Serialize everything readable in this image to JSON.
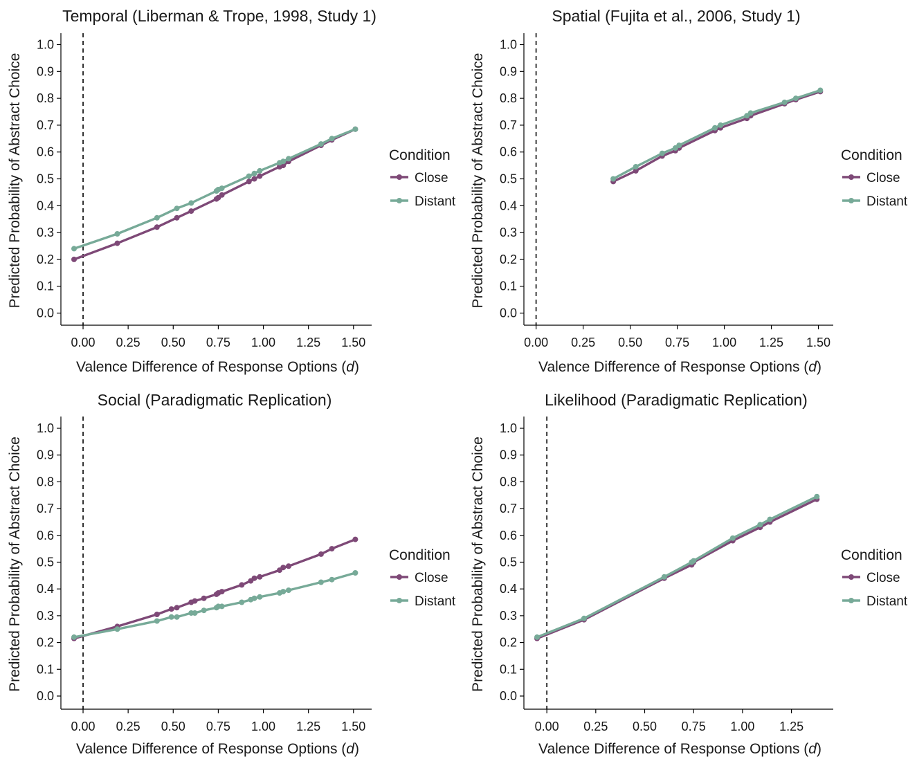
{
  "colors": {
    "close": "#7e4977",
    "distant": "#77aa98"
  },
  "chart_data": [
    {
      "type": "line",
      "title": "Temporal (Liberman & Trope, 1998, Study 1)",
      "xlabel": "Valence Difference of Response Options (",
      "xlabel_italic": "d",
      "xlabel_suffix": ")",
      "ylabel": "Predicted Probability of Abstract Choice",
      "xlim": [
        -0.05,
        1.52
      ],
      "ylim": [
        0.0,
        1.0
      ],
      "x_ticks": [
        "0.00",
        "0.25",
        "0.50",
        "0.75",
        "1.00",
        "1.25",
        "1.50"
      ],
      "y_ticks": [
        "0.0",
        "0.1",
        "0.2",
        "0.3",
        "0.4",
        "0.5",
        "0.6",
        "0.7",
        "0.8",
        "0.9",
        "1.0"
      ],
      "reference_line_x": 0.0,
      "legend": {
        "title": "Condition",
        "position": "right"
      },
      "x": [
        -0.05,
        0.19,
        0.41,
        0.52,
        0.6,
        0.74,
        0.75,
        0.77,
        0.92,
        0.95,
        0.98,
        1.09,
        1.11,
        1.14,
        1.32,
        1.38,
        1.51
      ],
      "series": [
        {
          "name": "Close",
          "values": [
            0.2,
            0.26,
            0.32,
            0.355,
            0.38,
            0.425,
            0.43,
            0.44,
            0.49,
            0.5,
            0.51,
            0.545,
            0.55,
            0.565,
            0.625,
            0.645,
            0.685
          ]
        },
        {
          "name": "Distant",
          "values": [
            0.24,
            0.295,
            0.355,
            0.39,
            0.41,
            0.455,
            0.46,
            0.465,
            0.51,
            0.52,
            0.53,
            0.56,
            0.565,
            0.575,
            0.63,
            0.65,
            0.685
          ]
        }
      ]
    },
    {
      "type": "line",
      "title": "Spatial (Fujita et al., 2006, Study 1)",
      "xlabel": "Valence Difference of Response Options (",
      "xlabel_italic": "d",
      "xlabel_suffix": ")",
      "ylabel": "Predicted Probability of Abstract Choice",
      "xlim": [
        -0.05,
        1.52
      ],
      "ylim": [
        0.0,
        1.0
      ],
      "x_ticks": [
        "0.00",
        "0.25",
        "0.50",
        "0.75",
        "1.00",
        "1.25",
        "1.50"
      ],
      "y_ticks": [
        "0.0",
        "0.1",
        "0.2",
        "0.3",
        "0.4",
        "0.5",
        "0.6",
        "0.7",
        "0.8",
        "0.9",
        "1.0"
      ],
      "reference_line_x": 0.0,
      "legend": {
        "title": "Condition",
        "position": "right"
      },
      "x": [
        0.41,
        0.53,
        0.67,
        0.74,
        0.76,
        0.95,
        0.98,
        1.12,
        1.14,
        1.32,
        1.38,
        1.51
      ],
      "series": [
        {
          "name": "Close",
          "values": [
            0.49,
            0.53,
            0.585,
            0.605,
            0.615,
            0.68,
            0.69,
            0.725,
            0.735,
            0.78,
            0.795,
            0.825
          ]
        },
        {
          "name": "Distant",
          "values": [
            0.5,
            0.545,
            0.595,
            0.615,
            0.625,
            0.69,
            0.7,
            0.735,
            0.745,
            0.785,
            0.8,
            0.83
          ]
        }
      ]
    },
    {
      "type": "line",
      "title": "Social (Paradigmatic Replication)",
      "xlabel": "Valence Difference of Response Options (",
      "xlabel_italic": "d",
      "xlabel_suffix": ")",
      "ylabel": "Predicted Probability of Abstract Choice",
      "xlim": [
        -0.05,
        1.52
      ],
      "ylim": [
        0.0,
        1.0
      ],
      "x_ticks": [
        "0.00",
        "0.25",
        "0.50",
        "0.75",
        "1.00",
        "1.25",
        "1.50"
      ],
      "y_ticks": [
        "0.0",
        "0.1",
        "0.2",
        "0.3",
        "0.4",
        "0.5",
        "0.6",
        "0.7",
        "0.8",
        "0.9",
        "1.0"
      ],
      "reference_line_x": 0.0,
      "legend": {
        "title": "Condition",
        "position": "right"
      },
      "x": [
        -0.05,
        0.19,
        0.41,
        0.49,
        0.52,
        0.6,
        0.62,
        0.67,
        0.74,
        0.75,
        0.77,
        0.88,
        0.93,
        0.95,
        0.98,
        1.09,
        1.11,
        1.14,
        1.32,
        1.38,
        1.51
      ],
      "series": [
        {
          "name": "Close",
          "values": [
            0.215,
            0.26,
            0.305,
            0.325,
            0.33,
            0.35,
            0.355,
            0.365,
            0.38,
            0.385,
            0.39,
            0.415,
            0.43,
            0.44,
            0.445,
            0.47,
            0.48,
            0.485,
            0.53,
            0.55,
            0.585
          ]
        },
        {
          "name": "Distant",
          "values": [
            0.22,
            0.25,
            0.28,
            0.295,
            0.295,
            0.31,
            0.31,
            0.32,
            0.33,
            0.335,
            0.335,
            0.35,
            0.36,
            0.365,
            0.37,
            0.385,
            0.39,
            0.395,
            0.425,
            0.435,
            0.46
          ]
        }
      ]
    },
    {
      "type": "line",
      "title": "Likelihood (Paradigmatic Replication)",
      "xlabel": "Valence Difference of Response Options (",
      "xlabel_italic": "d",
      "xlabel_suffix": ")",
      "ylabel": "Predicted Probability of Abstract Choice",
      "xlim": [
        -0.05,
        1.4
      ],
      "ylim": [
        0.0,
        1.0
      ],
      "x_ticks": [
        "0.00",
        "0.25",
        "0.50",
        "0.75",
        "1.00",
        "1.25"
      ],
      "y_ticks": [
        "0.0",
        "0.1",
        "0.2",
        "0.3",
        "0.4",
        "0.5",
        "0.6",
        "0.7",
        "0.8",
        "0.9",
        "1.0"
      ],
      "reference_line_x": 0.0,
      "legend": {
        "title": "Condition",
        "position": "right"
      },
      "x": [
        -0.05,
        0.19,
        0.6,
        0.74,
        0.75,
        0.95,
        1.09,
        1.14,
        1.38
      ],
      "series": [
        {
          "name": "Close",
          "values": [
            0.215,
            0.285,
            0.44,
            0.49,
            0.5,
            0.58,
            0.63,
            0.65,
            0.735
          ]
        },
        {
          "name": "Distant",
          "values": [
            0.22,
            0.29,
            0.445,
            0.5,
            0.505,
            0.59,
            0.64,
            0.66,
            0.745
          ]
        }
      ]
    }
  ]
}
